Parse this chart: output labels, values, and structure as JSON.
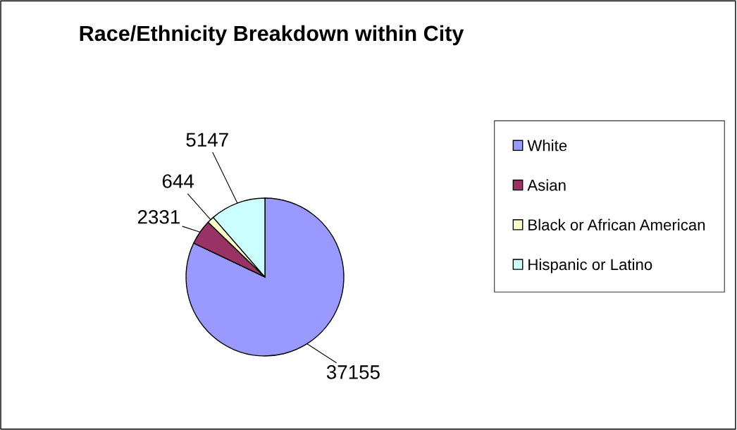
{
  "chart_data": {
    "type": "pie",
    "title": "Race/Ethnicity Breakdown within City",
    "categories": [
      "White",
      "Asian",
      "Black or African American",
      "Hispanic or Latino"
    ],
    "values": [
      37155,
      2331,
      644,
      5147
    ],
    "colors": [
      "#9999ff",
      "#993366",
      "#ffffcc",
      "#ccffff"
    ],
    "data_labels": true,
    "legend": "right"
  }
}
